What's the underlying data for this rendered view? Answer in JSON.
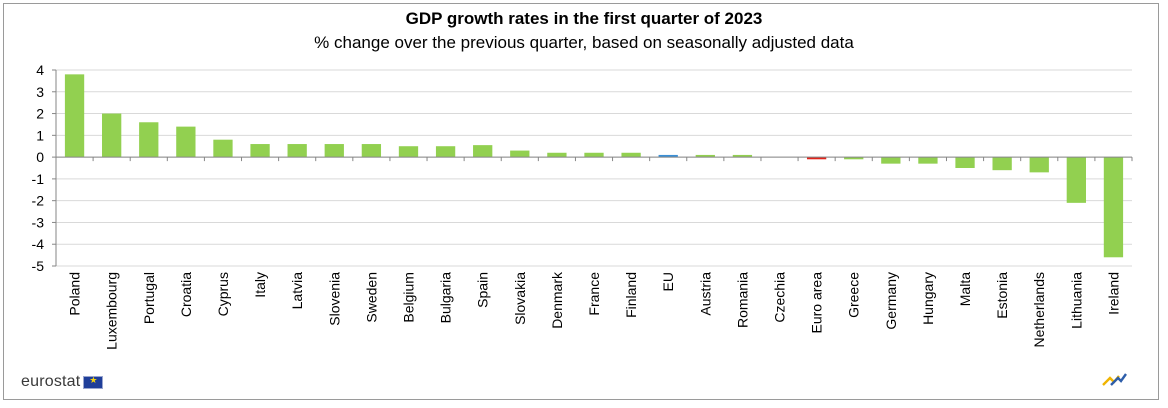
{
  "chart_data": {
    "type": "bar",
    "title": "GDP growth rates in the first quarter of  2023",
    "subtitle": "% change over the previous quarter, based on seasonally adjusted data",
    "categories": [
      "Poland",
      "Luxembourg",
      "Portugal",
      "Croatia",
      "Cyprus",
      "Italy",
      "Latvia",
      "Slovenia",
      "Sweden",
      "Belgium",
      "Bulgaria",
      "Spain",
      "Slovakia",
      "Denmark",
      "France",
      "Finland",
      "EU",
      "Austria",
      "Romania",
      "Czechia",
      "Euro area",
      "Greece",
      "Germany",
      "Hungary",
      "Malta",
      "Estonia",
      "Netherlands",
      "Lithuania",
      "Ireland"
    ],
    "values": [
      3.8,
      2.0,
      1.6,
      1.4,
      0.8,
      0.6,
      0.6,
      0.6,
      0.6,
      0.5,
      0.5,
      0.55,
      0.3,
      0.2,
      0.2,
      0.2,
      0.1,
      0.1,
      0.1,
      0.0,
      -0.1,
      -0.1,
      -0.3,
      -0.3,
      -0.5,
      -0.6,
      -0.7,
      -2.1,
      -4.6
    ],
    "highlight": {
      "EU": "#3a8fd6",
      "Euro area": "#e2231a"
    },
    "bar_color": "#92d050",
    "yticks": [
      4,
      3,
      2,
      1,
      0,
      -1,
      -2,
      -3,
      -4,
      -5
    ],
    "ylim": [
      -5,
      4
    ],
    "grid": true,
    "xlabel": "",
    "ylabel": ""
  },
  "footer": {
    "logo_text": "eurostat"
  }
}
